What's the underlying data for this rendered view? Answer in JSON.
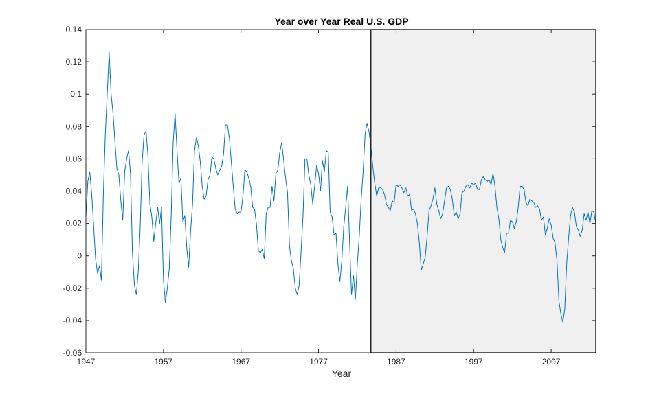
{
  "chart_data": {
    "type": "line",
    "title": "Year over Year Real U.S. GDP",
    "xlabel": "Year",
    "ylabel": "",
    "xlim": [
      1947,
      2012.75
    ],
    "ylim": [
      -0.06,
      0.14
    ],
    "xticks": [
      1947,
      1957,
      1967,
      1977,
      1987,
      1997,
      2007
    ],
    "yticks": [
      -0.06,
      -0.04,
      -0.02,
      0,
      0.02,
      0.04,
      0.06,
      0.08,
      0.1,
      0.12,
      0.14
    ],
    "ytick_labels": [
      "-0.06",
      "-0.04",
      "-0.02",
      "0",
      "0.02",
      "0.04",
      "0.06",
      "0.08",
      "0.1",
      "0.12",
      "0.14"
    ],
    "grid": false,
    "shaded_region": {
      "x_start": 1983.75,
      "x_end": 2012.75,
      "color": "#f0f0f0"
    },
    "colors": {
      "line": "#0072bd",
      "axis": "#262626",
      "shade_border": "#262626"
    },
    "series": [
      {
        "points": [
          [
            1947.0,
            0.024
          ],
          [
            1947.25,
            0.046
          ],
          [
            1947.5,
            0.052
          ],
          [
            1947.75,
            0.038
          ],
          [
            1948.0,
            0.018
          ],
          [
            1948.25,
            -0.002
          ],
          [
            1948.5,
            -0.011
          ],
          [
            1948.75,
            -0.006
          ],
          [
            1949.0,
            -0.015
          ],
          [
            1949.25,
            0.038
          ],
          [
            1949.5,
            0.075
          ],
          [
            1949.75,
            0.1
          ],
          [
            1950.0,
            0.126
          ],
          [
            1950.25,
            0.1
          ],
          [
            1950.5,
            0.088
          ],
          [
            1950.75,
            0.07
          ],
          [
            1951.0,
            0.054
          ],
          [
            1951.25,
            0.05
          ],
          [
            1951.5,
            0.034
          ],
          [
            1951.75,
            0.022
          ],
          [
            1952.0,
            0.052
          ],
          [
            1952.25,
            0.06
          ],
          [
            1952.5,
            0.065
          ],
          [
            1952.75,
            0.051
          ],
          [
            1953.0,
            0.002
          ],
          [
            1953.25,
            -0.018
          ],
          [
            1953.5,
            -0.024
          ],
          [
            1953.75,
            -0.01
          ],
          [
            1954.0,
            0.018
          ],
          [
            1954.25,
            0.058
          ],
          [
            1954.5,
            0.075
          ],
          [
            1954.75,
            0.077
          ],
          [
            1955.0,
            0.062
          ],
          [
            1955.25,
            0.032
          ],
          [
            1955.5,
            0.024
          ],
          [
            1955.75,
            0.009
          ],
          [
            1956.0,
            0.02
          ],
          [
            1956.25,
            0.03
          ],
          [
            1956.5,
            0.02
          ],
          [
            1956.75,
            0.03
          ],
          [
            1957.0,
            -0.015
          ],
          [
            1957.25,
            -0.029
          ],
          [
            1957.5,
            -0.02
          ],
          [
            1957.75,
            -0.008
          ],
          [
            1958.0,
            0.025
          ],
          [
            1958.25,
            0.07
          ],
          [
            1958.5,
            0.088
          ],
          [
            1958.75,
            0.065
          ],
          [
            1959.0,
            0.045
          ],
          [
            1959.25,
            0.048
          ],
          [
            1959.5,
            0.021
          ],
          [
            1959.75,
            0.025
          ],
          [
            1960.0,
            0.005
          ],
          [
            1960.25,
            -0.007
          ],
          [
            1960.5,
            0.015
          ],
          [
            1960.75,
            0.032
          ],
          [
            1961.0,
            0.065
          ],
          [
            1961.25,
            0.073
          ],
          [
            1961.5,
            0.068
          ],
          [
            1961.75,
            0.058
          ],
          [
            1962.0,
            0.043
          ],
          [
            1962.25,
            0.035
          ],
          [
            1962.5,
            0.037
          ],
          [
            1962.75,
            0.047
          ],
          [
            1963.0,
            0.05
          ],
          [
            1963.25,
            0.061
          ],
          [
            1963.5,
            0.06
          ],
          [
            1963.75,
            0.054
          ],
          [
            1964.0,
            0.05
          ],
          [
            1964.25,
            0.053
          ],
          [
            1964.5,
            0.055
          ],
          [
            1964.75,
            0.063
          ],
          [
            1965.0,
            0.081
          ],
          [
            1965.25,
            0.081
          ],
          [
            1965.5,
            0.073
          ],
          [
            1965.75,
            0.058
          ],
          [
            1966.0,
            0.043
          ],
          [
            1966.25,
            0.029
          ],
          [
            1966.5,
            0.026
          ],
          [
            1966.75,
            0.027
          ],
          [
            1967.0,
            0.027
          ],
          [
            1967.25,
            0.037
          ],
          [
            1967.5,
            0.053
          ],
          [
            1967.75,
            0.052
          ],
          [
            1968.0,
            0.048
          ],
          [
            1968.25,
            0.043
          ],
          [
            1968.5,
            0.03
          ],
          [
            1968.75,
            0.029
          ],
          [
            1969.0,
            0.019
          ],
          [
            1969.25,
            0.003
          ],
          [
            1969.5,
            0.002
          ],
          [
            1969.75,
            0.004
          ],
          [
            1970.0,
            -0.002
          ],
          [
            1970.25,
            0.026
          ],
          [
            1970.5,
            0.03
          ],
          [
            1970.75,
            0.03
          ],
          [
            1971.0,
            0.043
          ],
          [
            1971.25,
            0.034
          ],
          [
            1971.5,
            0.051
          ],
          [
            1971.75,
            0.053
          ],
          [
            1972.0,
            0.064
          ],
          [
            1972.25,
            0.07
          ],
          [
            1972.5,
            0.059
          ],
          [
            1972.75,
            0.048
          ],
          [
            1973.0,
            0.039
          ],
          [
            1973.25,
            0.006
          ],
          [
            1973.5,
            -0.003
          ],
          [
            1973.75,
            -0.008
          ],
          [
            1974.0,
            -0.02
          ],
          [
            1974.25,
            -0.024
          ],
          [
            1974.5,
            -0.018
          ],
          [
            1974.75,
            0.003
          ],
          [
            1975.0,
            0.025
          ],
          [
            1975.25,
            0.06
          ],
          [
            1975.5,
            0.06
          ],
          [
            1975.75,
            0.05
          ],
          [
            1976.0,
            0.044
          ],
          [
            1976.25,
            0.032
          ],
          [
            1976.5,
            0.043
          ],
          [
            1976.75,
            0.056
          ],
          [
            1977.0,
            0.051
          ],
          [
            1977.25,
            0.04
          ],
          [
            1977.5,
            0.059
          ],
          [
            1977.75,
            0.052
          ],
          [
            1978.0,
            0.065
          ],
          [
            1978.25,
            0.064
          ],
          [
            1978.5,
            0.027
          ],
          [
            1978.75,
            0.024
          ],
          [
            1979.0,
            0.013
          ],
          [
            1979.25,
            0.014
          ],
          [
            1979.5,
            -0.005
          ],
          [
            1979.75,
            -0.016
          ],
          [
            1980.0,
            -0.003
          ],
          [
            1980.25,
            0.018
          ],
          [
            1980.5,
            0.03
          ],
          [
            1980.75,
            0.043
          ],
          [
            1981.0,
            0.009
          ],
          [
            1981.25,
            -0.024
          ],
          [
            1981.5,
            -0.012
          ],
          [
            1981.75,
            -0.027
          ],
          [
            1982.0,
            -0.005
          ],
          [
            1982.25,
            0.012
          ],
          [
            1982.5,
            0.035
          ],
          [
            1982.75,
            0.052
          ],
          [
            1983.0,
            0.075
          ],
          [
            1983.25,
            0.082
          ],
          [
            1983.5,
            0.077
          ],
          [
            1983.75,
            0.068
          ],
          [
            1984.0,
            0.055
          ],
          [
            1984.25,
            0.045
          ],
          [
            1984.5,
            0.037
          ],
          [
            1984.75,
            0.042
          ],
          [
            1985.0,
            0.042
          ],
          [
            1985.25,
            0.041
          ],
          [
            1985.5,
            0.038
          ],
          [
            1985.75,
            0.032
          ],
          [
            1986.0,
            0.03
          ],
          [
            1986.25,
            0.028
          ],
          [
            1986.5,
            0.034
          ],
          [
            1986.75,
            0.033
          ],
          [
            1987.0,
            0.044
          ],
          [
            1987.25,
            0.043
          ],
          [
            1987.5,
            0.044
          ],
          [
            1987.75,
            0.042
          ],
          [
            1988.0,
            0.039
          ],
          [
            1988.25,
            0.042
          ],
          [
            1988.5,
            0.037
          ],
          [
            1988.75,
            0.038
          ],
          [
            1989.0,
            0.028
          ],
          [
            1989.25,
            0.029
          ],
          [
            1989.5,
            0.026
          ],
          [
            1989.75,
            0.02
          ],
          [
            1990.0,
            0.008
          ],
          [
            1990.25,
            -0.009
          ],
          [
            1990.5,
            -0.005
          ],
          [
            1990.75,
            -0.001
          ],
          [
            1991.0,
            0.012
          ],
          [
            1991.25,
            0.028
          ],
          [
            1991.5,
            0.031
          ],
          [
            1991.75,
            0.035
          ],
          [
            1992.0,
            0.042
          ],
          [
            1992.25,
            0.032
          ],
          [
            1992.5,
            0.028
          ],
          [
            1992.75,
            0.023
          ],
          [
            1993.0,
            0.026
          ],
          [
            1993.25,
            0.034
          ],
          [
            1993.5,
            0.042
          ],
          [
            1993.75,
            0.043
          ],
          [
            1994.0,
            0.041
          ],
          [
            1994.25,
            0.035
          ],
          [
            1994.5,
            0.025
          ],
          [
            1994.75,
            0.027
          ],
          [
            1995.0,
            0.023
          ],
          [
            1995.25,
            0.026
          ],
          [
            1995.5,
            0.039
          ],
          [
            1995.75,
            0.04
          ],
          [
            1996.0,
            0.043
          ],
          [
            1996.25,
            0.044
          ],
          [
            1996.5,
            0.042
          ],
          [
            1996.75,
            0.045
          ],
          [
            1997.0,
            0.044
          ],
          [
            1997.25,
            0.045
          ],
          [
            1997.5,
            0.041
          ],
          [
            1997.75,
            0.041
          ],
          [
            1998.0,
            0.047
          ],
          [
            1998.25,
            0.049
          ],
          [
            1998.5,
            0.047
          ],
          [
            1998.75,
            0.046
          ],
          [
            1999.0,
            0.047
          ],
          [
            1999.25,
            0.044
          ],
          [
            1999.5,
            0.051
          ],
          [
            1999.75,
            0.043
          ],
          [
            2000.0,
            0.03
          ],
          [
            2000.25,
            0.023
          ],
          [
            2000.5,
            0.01
          ],
          [
            2000.75,
            0.005
          ],
          [
            2001.0,
            0.002
          ],
          [
            2001.25,
            0.014
          ],
          [
            2001.5,
            0.014
          ],
          [
            2001.75,
            0.022
          ],
          [
            2002.0,
            0.021
          ],
          [
            2002.25,
            0.017
          ],
          [
            2002.5,
            0.021
          ],
          [
            2002.75,
            0.03
          ],
          [
            2003.0,
            0.043
          ],
          [
            2003.25,
            0.043
          ],
          [
            2003.5,
            0.041
          ],
          [
            2003.75,
            0.033
          ],
          [
            2004.0,
            0.031
          ],
          [
            2004.25,
            0.035
          ],
          [
            2004.5,
            0.034
          ],
          [
            2004.75,
            0.033
          ],
          [
            2005.0,
            0.03
          ],
          [
            2005.25,
            0.031
          ],
          [
            2005.5,
            0.029
          ],
          [
            2005.75,
            0.022
          ],
          [
            2006.0,
            0.024
          ],
          [
            2006.25,
            0.013
          ],
          [
            2006.5,
            0.017
          ],
          [
            2006.75,
            0.023
          ],
          [
            2007.0,
            0.019
          ],
          [
            2007.25,
            0.011
          ],
          [
            2007.5,
            0.008
          ],
          [
            2007.75,
            -0.003
          ],
          [
            2008.0,
            -0.028
          ],
          [
            2008.25,
            -0.036
          ],
          [
            2008.5,
            -0.041
          ],
          [
            2008.75,
            -0.033
          ],
          [
            2009.0,
            -0.005
          ],
          [
            2009.25,
            0.011
          ],
          [
            2009.5,
            0.025
          ],
          [
            2009.75,
            0.03
          ],
          [
            2010.0,
            0.027
          ],
          [
            2010.25,
            0.018
          ],
          [
            2010.5,
            0.016
          ],
          [
            2010.75,
            0.012
          ],
          [
            2011.0,
            0.016
          ],
          [
            2011.25,
            0.026
          ],
          [
            2011.5,
            0.022
          ],
          [
            2011.75,
            0.027
          ],
          [
            2012.0,
            0.02
          ],
          [
            2012.25,
            0.028
          ],
          [
            2012.5,
            0.027
          ],
          [
            2012.75,
            0.02
          ]
        ]
      }
    ]
  }
}
